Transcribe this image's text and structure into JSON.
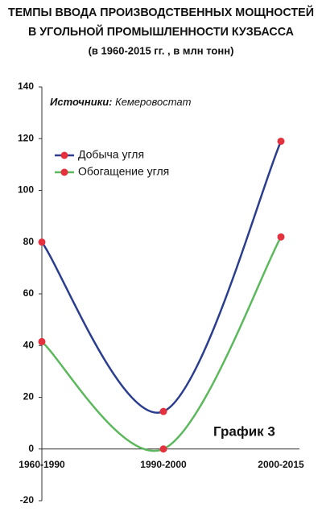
{
  "chart_data": {
    "type": "line",
    "title": [
      "ТЕМПЫ ВВОДА ПРОИЗВОДСТВЕННЫХ МОЩНОСТЕЙ",
      "В УГОЛЬНОЙ ПРОМЫШЛЕННОСТИ КУЗБАССА"
    ],
    "subtitle": "(в 1960-2015 гг. , в млн тонн)",
    "source_label": "Источники:",
    "source": "Кемеровостат",
    "chart_label": "График 3",
    "categories": [
      "1960-1990",
      "1990-2000",
      "2000-2015"
    ],
    "series": [
      {
        "name": "Добыча угля",
        "color": "#2b3d8f",
        "values": [
          80,
          14.5,
          119
        ]
      },
      {
        "name": "Обогащение угля",
        "color": "#5cb85c",
        "values": [
          41.5,
          0,
          82
        ]
      }
    ],
    "marker_color": "#e5303e",
    "ylim": [
      -20,
      140
    ],
    "yticks": [
      -20,
      0,
      20,
      40,
      60,
      80,
      100,
      120,
      140
    ]
  }
}
